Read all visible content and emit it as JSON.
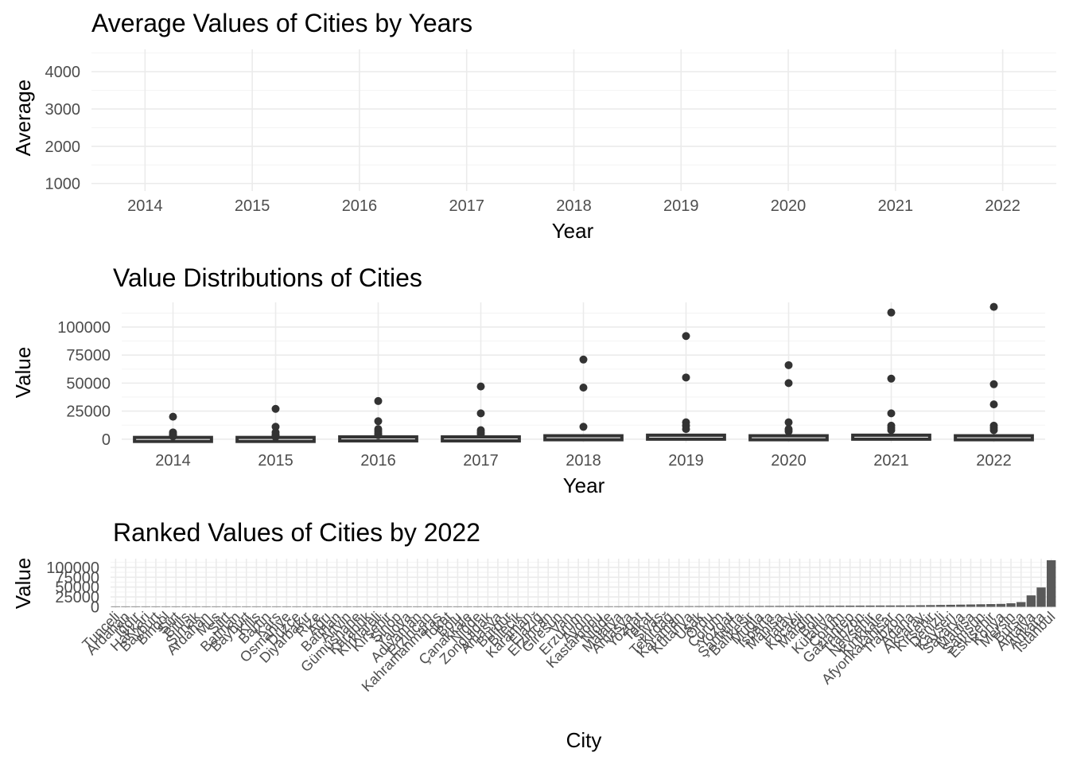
{
  "chart_data": [
    {
      "type": "line",
      "title": "Average Values of Cities by Years",
      "xlabel": "Year",
      "ylabel": "Average",
      "categories": [
        "2014",
        "2015",
        "2016",
        "2017",
        "2018",
        "2019",
        "2020",
        "2021",
        "2022"
      ],
      "ylim": [
        800,
        4600
      ],
      "yticks": [
        1000,
        2000,
        3000,
        4000
      ],
      "series": [],
      "grid": true
    },
    {
      "type": "box",
      "title": "Value Distributions of Cities",
      "xlabel": "Year",
      "ylabel": "Value",
      "categories": [
        "2014",
        "2015",
        "2016",
        "2017",
        "2018",
        "2019",
        "2020",
        "2021",
        "2022"
      ],
      "ylim": [
        -3000,
        122000
      ],
      "yticks": [
        0,
        25000,
        50000,
        75000,
        100000
      ],
      "boxes": [
        {
          "q1": 0,
          "q3": 1500,
          "outliers": [
            20000,
            6000,
            4500,
            3500,
            2500
          ]
        },
        {
          "q1": 0,
          "q3": 1500,
          "outliers": [
            27000,
            11000,
            6000,
            4000,
            3000,
            2000
          ]
        },
        {
          "q1": 0,
          "q3": 2000,
          "outliers": [
            34000,
            16000,
            9000,
            7000,
            5000,
            3500
          ]
        },
        {
          "q1": 0,
          "q3": 2000,
          "outliers": [
            47000,
            23000,
            8000,
            6000,
            4500
          ]
        },
        {
          "q1": 0,
          "q3": 3000,
          "outliers": [
            71000,
            46000,
            11000
          ]
        },
        {
          "q1": 0,
          "q3": 3500,
          "outliers": [
            92000,
            55000,
            15000,
            12000,
            9000
          ]
        },
        {
          "q1": 0,
          "q3": 3000,
          "outliers": [
            66000,
            50000,
            15000,
            9000,
            7000
          ]
        },
        {
          "q1": 0,
          "q3": 3500,
          "outliers": [
            113000,
            54000,
            23000,
            12000,
            10000,
            8000
          ]
        },
        {
          "q1": 0,
          "q3": 3000,
          "outliers": [
            118000,
            49000,
            31000,
            12000,
            10000,
            8000
          ]
        }
      ],
      "grid": true
    },
    {
      "type": "bar",
      "title": "Ranked Values of Cities by 2022",
      "xlabel": "City",
      "ylabel": "Value",
      "ylim": [
        -3000,
        122000
      ],
      "yticks": [
        0,
        25000,
        50000,
        75000,
        100000
      ],
      "categories": [
        "Tunceli",
        "Ardahan",
        "Iğdır",
        "Hakkari",
        "Bayburt",
        "Bingöl",
        "Siirt",
        "Bitlis",
        "Şırnak",
        "Ardahan",
        "Muş",
        "Siirt",
        "Batman",
        "Bayburt",
        "Kilis",
        "Bartın",
        "Kars",
        "Osmaniye",
        "Düzce",
        "Diyarbakır",
        "Rize",
        "Ağrı",
        "Batman",
        "Artvin",
        "Gümüşhane",
        "Karabük",
        "Kırklareli",
        "Kırşehir",
        "Sinop",
        "Yalova",
        "Adıyaman",
        "Erzincan",
        "Kahramanmaraş",
        "Tokat",
        "Bolu",
        "Çanakkale",
        "Niğde",
        "Zonguldak",
        "Amasya",
        "Burdur",
        "Bilecik",
        "Karaman",
        "Elazığ",
        "Erzincan",
        "Giresun",
        "Van",
        "Erzurum",
        "Aydın",
        "Kastamonu",
        "Niğde",
        "Malatya",
        "Amasya",
        "Yozgat",
        "Tokat",
        "Sivas",
        "Tekirdağ",
        "Karaman",
        "Kütahya",
        "Uşak",
        "Ordu",
        "Çorum",
        "Yozgat",
        "Şanlıurfa",
        "Balıkesir",
        "Muğla",
        "Isparta",
        "Manisa",
        "Hatay",
        "Kocaeli",
        "Mardin",
        "Bolu",
        "Kütahya",
        "Çorum",
        "Gaziantep",
        "Trabzon",
        "Nevşehir",
        "Kırıkkale",
        "Afyonkarahisar",
        "Trabzon",
        "Adana",
        "Aksaray",
        "Kırşehir",
        "Denizli",
        "Kayseri",
        "Sakarya",
        "Manisa",
        "Samsun",
        "Eskişehir",
        "Konya",
        "Mersin",
        "Bursa",
        "Antalya",
        "Ankara",
        "İstanbul"
      ],
      "values": [
        0,
        0,
        0,
        0,
        0,
        0,
        0,
        0,
        0,
        0,
        0,
        0,
        0,
        0,
        0,
        0,
        0,
        0,
        0,
        0,
        0,
        0,
        0,
        0,
        0,
        0,
        0,
        200,
        250,
        300,
        350,
        400,
        450,
        500,
        550,
        600,
        650,
        700,
        750,
        800,
        850,
        900,
        950,
        1000,
        1050,
        1100,
        1150,
        1200,
        1250,
        1300,
        1350,
        1400,
        1450,
        1500,
        1550,
        1600,
        1650,
        1700,
        1750,
        1800,
        1850,
        1900,
        1950,
        2000,
        2100,
        2200,
        2300,
        2400,
        2500,
        2600,
        2700,
        2800,
        2900,
        3000,
        3100,
        3200,
        3300,
        3400,
        3500,
        3600,
        4000,
        4400,
        4800,
        5200,
        5600,
        6000,
        6500,
        7000,
        7500,
        9000,
        12000,
        29000,
        49000,
        118000
      ],
      "grid": true
    }
  ]
}
